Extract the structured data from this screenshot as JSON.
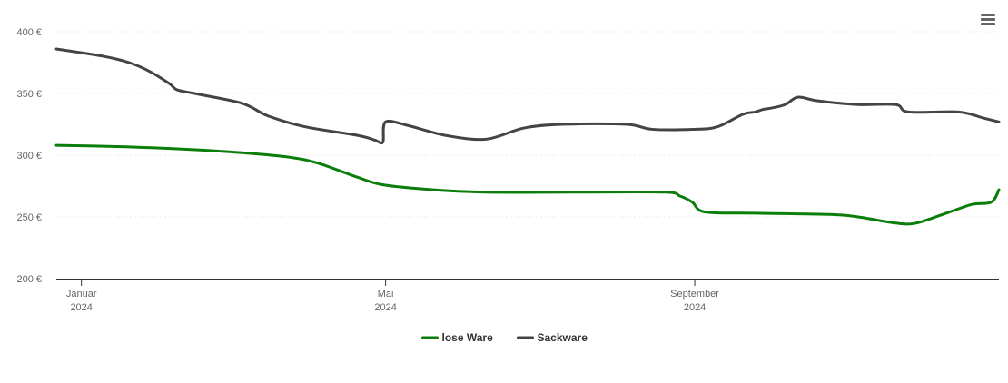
{
  "chart_data": {
    "type": "line",
    "currency_suffix": " €",
    "y_ticks": [
      200,
      250,
      300,
      350,
      400
    ],
    "ylim": [
      200,
      400
    ],
    "x_range": [
      "2023-12-22",
      "2024-12-31"
    ],
    "grid": true,
    "legend_position": "bottom-center",
    "x_ticks": [
      {
        "date": "2024-01-01",
        "label_month": "Januar",
        "label_year": "2024"
      },
      {
        "date": "2024-05-01",
        "label_month": "Mai",
        "label_year": "2024"
      },
      {
        "date": "2024-09-01",
        "label_month": "September",
        "label_year": "2024"
      }
    ],
    "series": [
      {
        "name": "lose Ware",
        "color": "#0a7d0a",
        "points": [
          [
            "2023-12-22",
            308
          ],
          [
            "2024-01-15",
            307
          ],
          [
            "2024-02-10",
            305
          ],
          [
            "2024-03-05",
            302
          ],
          [
            "2024-03-25",
            298
          ],
          [
            "2024-04-05",
            293
          ],
          [
            "2024-04-20",
            282
          ],
          [
            "2024-04-30",
            276
          ],
          [
            "2024-05-20",
            272
          ],
          [
            "2024-06-10",
            270
          ],
          [
            "2024-07-15",
            270
          ],
          [
            "2024-08-20",
            270
          ],
          [
            "2024-08-26",
            267
          ],
          [
            "2024-08-31",
            262
          ],
          [
            "2024-09-05",
            254
          ],
          [
            "2024-09-25",
            253
          ],
          [
            "2024-10-25",
            252
          ],
          [
            "2024-11-05",
            250
          ],
          [
            "2024-11-20",
            245
          ],
          [
            "2024-11-28",
            245
          ],
          [
            "2024-12-10",
            253
          ],
          [
            "2024-12-20",
            260
          ],
          [
            "2024-12-28",
            262
          ],
          [
            "2024-12-31",
            272
          ]
        ]
      },
      {
        "name": "Sackware",
        "color": "#434348",
        "points": [
          [
            "2023-12-22",
            386
          ],
          [
            "2024-01-10",
            380
          ],
          [
            "2024-01-20",
            375
          ],
          [
            "2024-01-28",
            368
          ],
          [
            "2024-02-05",
            358
          ],
          [
            "2024-02-08",
            353
          ],
          [
            "2024-02-15",
            350
          ],
          [
            "2024-03-05",
            342
          ],
          [
            "2024-03-15",
            332
          ],
          [
            "2024-03-30",
            323
          ],
          [
            "2024-04-20",
            316
          ],
          [
            "2024-04-27",
            312
          ],
          [
            "2024-04-28",
            311
          ],
          [
            "2024-04-30",
            311
          ],
          [
            "2024-05-01",
            327
          ],
          [
            "2024-05-10",
            324
          ],
          [
            "2024-05-25",
            316
          ],
          [
            "2024-06-10",
            313
          ],
          [
            "2024-06-25",
            322
          ],
          [
            "2024-07-10",
            325
          ],
          [
            "2024-08-05",
            325
          ],
          [
            "2024-08-15",
            321
          ],
          [
            "2024-09-01",
            321
          ],
          [
            "2024-09-10",
            323
          ],
          [
            "2024-09-20",
            333
          ],
          [
            "2024-09-25",
            335
          ],
          [
            "2024-09-28",
            337
          ],
          [
            "2024-10-01",
            338
          ],
          [
            "2024-10-07",
            341
          ],
          [
            "2024-10-12",
            347
          ],
          [
            "2024-10-20",
            344
          ],
          [
            "2024-11-05",
            341
          ],
          [
            "2024-11-20",
            341
          ],
          [
            "2024-11-25",
            335
          ],
          [
            "2024-12-15",
            335
          ],
          [
            "2024-12-25",
            330
          ],
          [
            "2024-12-31",
            327
          ]
        ]
      }
    ]
  }
}
